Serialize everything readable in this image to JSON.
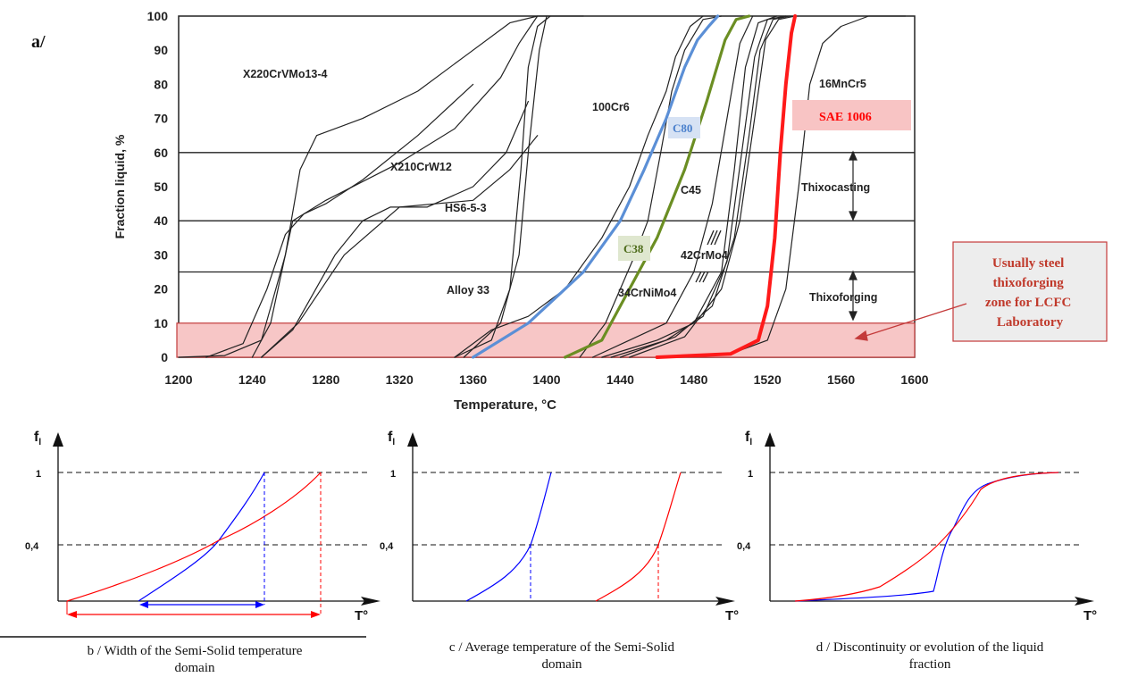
{
  "panel_a_label": "a/",
  "chart_data": [
    {
      "type": "line",
      "xlabel": "Temperature, °C",
      "ylabel": "Fraction liquid, %",
      "xlim": [
        1200,
        1600
      ],
      "ylim": [
        0,
        100
      ],
      "xticks": [
        "1200",
        "1240",
        "1280",
        "1320",
        "1360",
        "1400",
        "1440",
        "1480",
        "1520",
        "1560",
        "1600"
      ],
      "yticks": [
        "0",
        "10",
        "20",
        "30",
        "40",
        "50",
        "60",
        "70",
        "80",
        "90",
        "100"
      ],
      "horizontal_lines": [
        25,
        40,
        60
      ],
      "zone": {
        "from": 0,
        "to": 10,
        "label": "Usually steel thixoforging zone for LCFC Laboratory"
      },
      "ranges": [
        {
          "label": "Thixocasting",
          "from": 40,
          "to": 60
        },
        {
          "label": "Thixoforging",
          "from": 10,
          "to": 25
        }
      ],
      "series": [
        {
          "name": "X220CrVMo13-4",
          "color": "#222222",
          "x": [
            1200,
            1225,
            1245,
            1258,
            1266,
            1275,
            1300,
            1330,
            1355,
            1380,
            1395,
            1420
          ],
          "y": [
            0,
            0.5,
            5,
            30,
            55,
            65,
            70,
            78,
            88,
            98,
            100,
            100
          ]
        },
        {
          "name": "X220CrVMo13-4",
          "color": "#222222",
          "x": [
            1215,
            1235,
            1248,
            1258,
            1268,
            1280,
            1300,
            1330,
            1360
          ],
          "y": [
            0,
            4,
            20,
            36,
            42,
            45,
            52,
            65,
            80
          ]
        },
        {
          "name": "X210CrW12",
          "color": "#222222",
          "x": [
            1240,
            1250,
            1262,
            1280,
            1320,
            1350,
            1375,
            1385,
            1395
          ],
          "y": [
            0,
            10,
            40,
            46,
            57,
            67,
            82,
            92,
            100
          ]
        },
        {
          "name": "HS6-5-3",
          "color": "#222222",
          "x": [
            1245,
            1262,
            1285,
            1300,
            1315,
            1335,
            1360,
            1378,
            1390
          ],
          "y": [
            0,
            8,
            30,
            40,
            44,
            44,
            50,
            60,
            75
          ]
        },
        {
          "name": "Alloy 33",
          "color": "#222222",
          "x": [
            1245,
            1265,
            1290,
            1320,
            1360,
            1380,
            1395
          ],
          "y": [
            0,
            10,
            30,
            44,
            46,
            55,
            65
          ]
        },
        {
          "name": "",
          "color": "#222222",
          "x": [
            1350,
            1370,
            1380,
            1386,
            1390,
            1395,
            1402
          ],
          "y": [
            0,
            5,
            20,
            55,
            85,
            97,
            100
          ]
        },
        {
          "name": "",
          "color": "#222222",
          "x": [
            1355,
            1375,
            1385,
            1390,
            1396,
            1400
          ],
          "y": [
            0,
            10,
            30,
            60,
            90,
            100
          ]
        },
        {
          "name": "100Cr6",
          "color": "#222222",
          "x": [
            1350,
            1370,
            1390,
            1410,
            1430,
            1445,
            1455,
            1465,
            1470,
            1478,
            1485
          ],
          "y": [
            0,
            8,
            12,
            20,
            35,
            50,
            65,
            78,
            88,
            97,
            100
          ]
        },
        {
          "name": "",
          "color": "#222222",
          "x": [
            1418,
            1432,
            1440,
            1448,
            1455,
            1462,
            1468,
            1475,
            1485,
            1495
          ],
          "y": [
            0,
            10,
            20,
            30,
            40,
            60,
            78,
            90,
            99,
            100
          ]
        },
        {
          "name": "C80",
          "color": "#5b8fd6",
          "x": [
            1360,
            1390,
            1420,
            1440,
            1453,
            1465,
            1475,
            1482,
            1488,
            1493
          ],
          "y": [
            0,
            10,
            25,
            40,
            55,
            70,
            85,
            93,
            97,
            100
          ]
        },
        {
          "name": "C38",
          "color": "#6b8e23",
          "x": [
            1410,
            1430,
            1445,
            1460,
            1475,
            1487,
            1497,
            1503,
            1510
          ],
          "y": [
            0,
            5,
            20,
            35,
            55,
            75,
            93,
            99,
            100
          ]
        },
        {
          "name": "C45",
          "color": "#222222",
          "x": [
            1425,
            1445,
            1465,
            1480,
            1490,
            1498,
            1505,
            1512
          ],
          "y": [
            0,
            5,
            10,
            25,
            45,
            70,
            92,
            100
          ]
        },
        {
          "name": "42CrMo4",
          "color": "#222222",
          "x": [
            1430,
            1460,
            1480,
            1495,
            1502,
            1508,
            1515,
            1525
          ],
          "y": [
            0,
            5,
            10,
            25,
            55,
            85,
            98,
            100
          ]
        },
        {
          "name": "34CrNiMo4",
          "color": "#222222",
          "x": [
            1435,
            1465,
            1485,
            1498,
            1506,
            1513,
            1520,
            1530
          ],
          "y": [
            0,
            5,
            12,
            28,
            60,
            88,
            99,
            100
          ]
        },
        {
          "name": "",
          "color": "#222222",
          "x": [
            1440,
            1470,
            1490,
            1502,
            1510,
            1516,
            1523,
            1532
          ],
          "y": [
            0,
            6,
            15,
            35,
            65,
            90,
            99,
            100
          ]
        },
        {
          "name": "",
          "color": "#222222",
          "x": [
            1445,
            1475,
            1495,
            1505,
            1513,
            1519,
            1526,
            1535
          ],
          "y": [
            0,
            6,
            20,
            40,
            70,
            93,
            99,
            100
          ]
        },
        {
          "name": "16MnCr5",
          "color": "#222222",
          "x": [
            1465,
            1500,
            1520,
            1530,
            1537,
            1543,
            1550,
            1560,
            1575,
            1595
          ],
          "y": [
            0,
            1,
            5,
            20,
            50,
            80,
            92,
            97,
            100,
            100
          ]
        },
        {
          "name": "SAE 1006",
          "color": "#ff1a1a",
          "x": [
            1460,
            1500,
            1515,
            1520,
            1524,
            1527,
            1530,
            1533,
            1535
          ],
          "y": [
            0,
            1,
            5,
            15,
            35,
            60,
            80,
            95,
            100
          ]
        }
      ],
      "labels": [
        {
          "text": "X220CrVMo13-4"
        },
        {
          "text": "X210CrW12"
        },
        {
          "text": "HS6-5-3"
        },
        {
          "text": "100Cr6"
        },
        {
          "text": "C45"
        },
        {
          "text": "42CrMo4"
        },
        {
          "text": "34CrNiMo4"
        },
        {
          "text": "Alloy 33"
        },
        {
          "text": "16MnCr5"
        },
        {
          "text": "Thixocasting"
        },
        {
          "text": "Thixoforging"
        }
      ],
      "tags": [
        {
          "text": "C80",
          "color": "#4a80cc"
        },
        {
          "text": "C38",
          "color": "#4d6b1a"
        },
        {
          "text": "SAE 1006",
          "color": "#ff0000"
        }
      ]
    },
    {
      "type": "line",
      "ylabel": "fl",
      "xlabel": "T°",
      "yticks": [
        "1",
        "0,4"
      ],
      "caption": "b / Width of the Semi-Solid temperature domain"
    },
    {
      "type": "line",
      "ylabel": "fl",
      "xlabel": "T°",
      "yticks": [
        "1",
        "0,4"
      ],
      "caption": "c / Average temperature of the Semi-Solid domain"
    },
    {
      "type": "line",
      "ylabel": "fl",
      "xlabel": "T°",
      "yticks": [
        "1",
        "0,4"
      ],
      "caption": "d / Discontinuity or evolution of the liquid fraction"
    }
  ],
  "zone_label_lines": [
    "Usually steel",
    "thixoforging",
    "zone for LCFC",
    "Laboratory"
  ],
  "captions": {
    "b_line1": "b / Width of the Semi-Solid temperature",
    "b_line2": "domain",
    "c_line1": "c / Average temperature of the Semi-Solid",
    "c_line2": "domain",
    "d_line1": "d / Discontinuity or evolution of the liquid",
    "d_line2": "fraction"
  },
  "small": {
    "fl_main": "f",
    "fl_sub": "l",
    "t_label": "T°",
    "y1": "1",
    "y04": "0,4"
  },
  "colors": {
    "blue_curve": "#0000ff",
    "red_curve": "#ff0000",
    "c80": "#5b8fd6",
    "c38": "#6b8e23",
    "sae": "#ff1a1a",
    "zone_fill": "#f7c6c6"
  }
}
